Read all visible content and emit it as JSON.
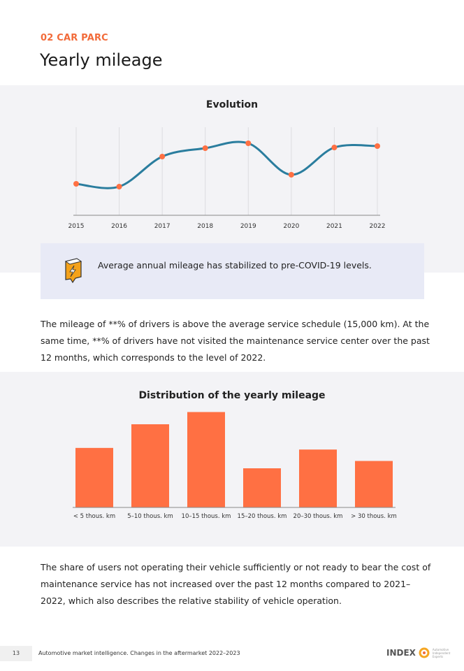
{
  "header": {
    "section_label": "02 CAR PARC",
    "title": "Yearly mileage"
  },
  "chart_data": [
    {
      "type": "line",
      "title": "Evolution",
      "xlabel": "",
      "ylabel": "",
      "categories": [
        "2015",
        "2016",
        "2017",
        "2018",
        "2019",
        "2020",
        "2021",
        "2022"
      ],
      "values": [
        45,
        41,
        84,
        96,
        103,
        58,
        97,
        99
      ],
      "ylim": [
        0,
        126
      ],
      "grid": "vertical",
      "note": "relative values, no y-axis labels shown",
      "line_color": "#2a7d9e",
      "marker_color": "#ff7043"
    },
    {
      "type": "bar",
      "title": "Distribution of the yearly mileage",
      "xlabel": "",
      "ylabel": "",
      "categories": [
        "< 5 thous. km",
        "5–10 thous. km",
        "10–15 thous. km",
        "15–20 thous. km",
        "20–30 thous. km",
        "> 30 thous. km"
      ],
      "values": [
        73,
        102,
        117,
        48,
        71,
        57
      ],
      "ylim": [
        0,
        120
      ],
      "bar_color": "#ff7043"
    }
  ],
  "callout": {
    "icon": "lightning-chat-icon",
    "text": "Average annual mileage has stabilized to pre-COVID-19 levels."
  },
  "paragraphs": [
    "The mileage of **% of drivers is above the average service schedule (15,000 km). At the same time, **% of drivers have not visited the maintenance service center over the past 12 months, which corresponds to the level of 2022.",
    "The share of users not operating their vehicle sufficiently or not ready to bear the cost of maintenance service has not increased over the past 12 months compared to 2021–2022, which also describes the relative stability of vehicle operation."
  ],
  "footer": {
    "page_number": "13",
    "text": "Automotive market intelligence. Changes in the aftermarket 2022–2023",
    "logo_word": "INDEX",
    "logo_tagline": "Automotive Independent Experts"
  }
}
